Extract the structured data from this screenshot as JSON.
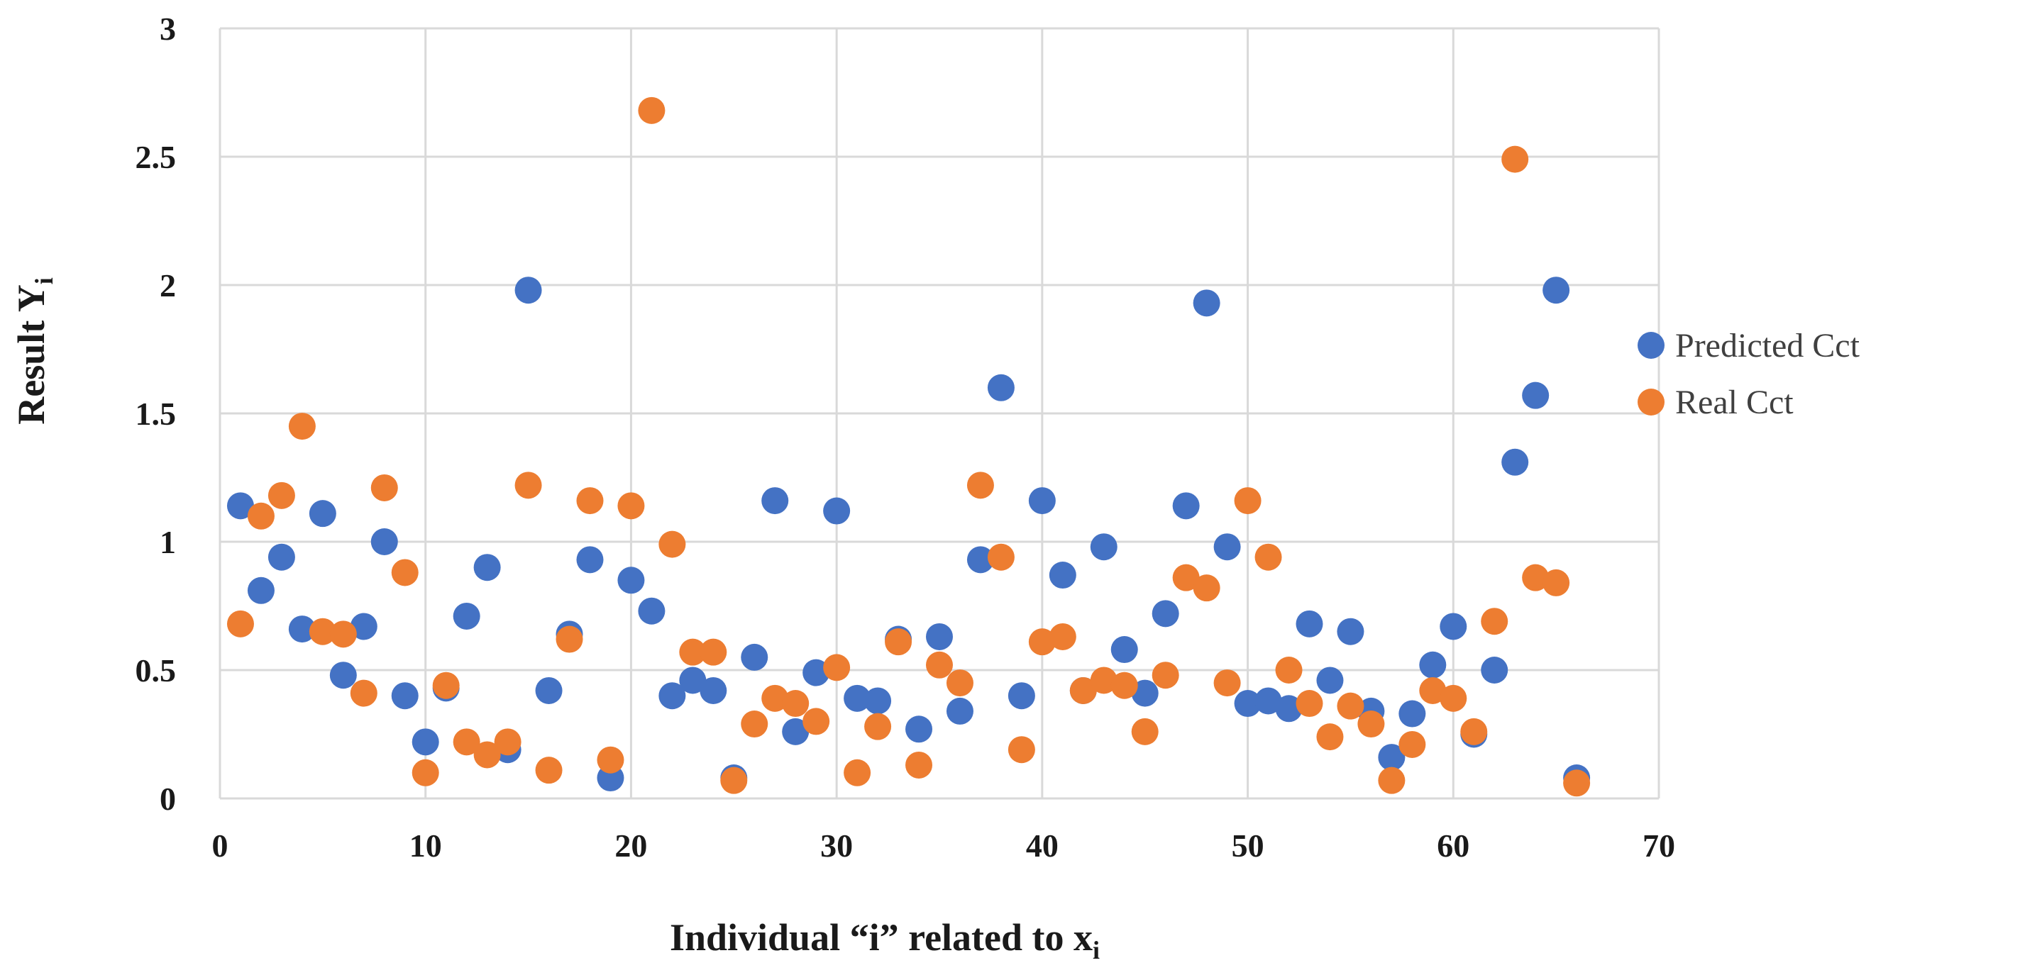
{
  "chart_data": {
    "type": "scatter",
    "title": "",
    "xlabel": "Individual “i” related to x",
    "xlabel_subscript": "i",
    "ylabel": "Result Y",
    "ylabel_subscript": "i",
    "xlim": [
      0,
      70
    ],
    "ylim": [
      0,
      3
    ],
    "xticks": [
      0,
      10,
      20,
      30,
      40,
      50,
      60,
      70
    ],
    "yticks": [
      0,
      0.5,
      1,
      1.5,
      2,
      2.5,
      3
    ],
    "xtick_labels": [
      "0",
      "10",
      "20",
      "30",
      "40",
      "50",
      "60",
      "70"
    ],
    "ytick_labels": [
      "0",
      "0.5",
      "1",
      "1.5",
      "2",
      "2.5",
      "3"
    ],
    "grid": true,
    "legend_position": "right",
    "series": [
      {
        "name": "Predicted Cct",
        "color": "#4472C4",
        "x": [
          1,
          2,
          3,
          4,
          5,
          6,
          7,
          8,
          9,
          10,
          11,
          12,
          13,
          14,
          15,
          16,
          17,
          18,
          19,
          20,
          21,
          22,
          23,
          24,
          25,
          26,
          27,
          28,
          29,
          30,
          31,
          32,
          33,
          34,
          35,
          36,
          37,
          38,
          39,
          40,
          41,
          42,
          43,
          44,
          45,
          46,
          47,
          48,
          49,
          50,
          51,
          52,
          53,
          54,
          55,
          56,
          57,
          58,
          59,
          60,
          61,
          62,
          63,
          64,
          65,
          66
        ],
        "y": [
          1.14,
          0.81,
          0.94,
          0.66,
          1.11,
          0.48,
          0.67,
          1.0,
          0.4,
          0.22,
          0.43,
          0.71,
          0.9,
          0.19,
          1.98,
          0.42,
          0.64,
          0.93,
          0.08,
          0.85,
          0.73,
          0.4,
          0.46,
          0.42,
          0.08,
          0.55,
          1.16,
          0.26,
          0.49,
          1.12,
          0.39,
          0.38,
          0.62,
          0.27,
          0.63,
          0.34,
          0.93,
          1.6,
          0.4,
          1.16,
          0.87,
          0.42,
          0.98,
          0.58,
          0.41,
          0.72,
          1.14,
          1.93,
          0.98,
          0.37,
          0.38,
          0.35,
          0.68,
          0.46,
          0.65,
          0.34,
          0.16,
          0.33,
          0.52,
          0.67,
          0.25,
          0.5,
          1.31,
          1.57,
          1.98,
          0.08
        ]
      },
      {
        "name": "Real Cct",
        "color": "#ED7D31",
        "x": [
          1,
          2,
          3,
          4,
          5,
          6,
          7,
          8,
          9,
          10,
          11,
          12,
          13,
          14,
          15,
          16,
          17,
          18,
          19,
          20,
          21,
          22,
          23,
          24,
          25,
          26,
          27,
          28,
          29,
          30,
          31,
          32,
          33,
          34,
          35,
          36,
          37,
          38,
          39,
          40,
          41,
          42,
          43,
          44,
          45,
          46,
          47,
          48,
          49,
          50,
          51,
          52,
          53,
          54,
          55,
          56,
          57,
          58,
          59,
          60,
          61,
          62,
          63,
          64,
          65,
          66
        ],
        "y": [
          0.68,
          1.1,
          1.18,
          1.45,
          0.65,
          0.64,
          0.41,
          1.21,
          0.88,
          0.1,
          0.44,
          0.22,
          0.17,
          0.22,
          1.22,
          0.11,
          0.62,
          1.16,
          0.15,
          1.14,
          2.68,
          0.99,
          0.57,
          0.57,
          0.07,
          0.29,
          0.39,
          0.37,
          0.3,
          0.51,
          0.1,
          0.28,
          0.61,
          0.13,
          0.52,
          0.45,
          1.22,
          0.94,
          0.19,
          0.61,
          0.63,
          0.42,
          0.46,
          0.44,
          0.26,
          0.48,
          0.86,
          0.82,
          0.45,
          1.16,
          0.94,
          0.5,
          0.37,
          0.24,
          0.36,
          0.29,
          0.07,
          0.21,
          0.42,
          0.39,
          0.26,
          0.69,
          2.49,
          0.86,
          0.84,
          0.06
        ]
      }
    ]
  }
}
